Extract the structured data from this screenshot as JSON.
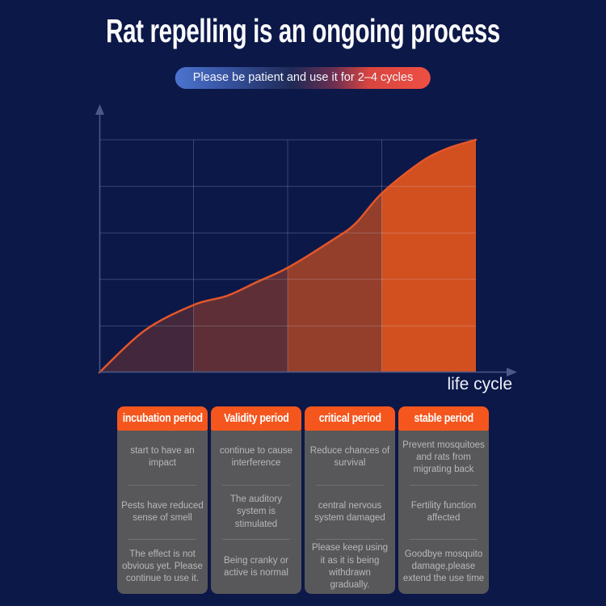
{
  "page": {
    "title": "Rat repelling is an ongoing process",
    "banner": "Please be patient and use it for 2–4 cycles"
  },
  "colors": {
    "background": "#0c1848",
    "header_orange": "#f4561d",
    "curve_orange": "#e4562a",
    "area_orange": "#d9531f",
    "banner_blue": "#4b74cf",
    "banner_red": "#ee4f43",
    "card_gray": "#58585a",
    "grid_line": "rgba(225,232,250,0.22)",
    "axis_line": "#4c5a87",
    "text_light": "#b7b8ba"
  },
  "chart_data": {
    "type": "area",
    "title": "",
    "xlabel": "life cycle",
    "ylabel": "",
    "legend": "none",
    "grid": {
      "rows": 5,
      "cols": 4,
      "visible": true
    },
    "axes": "unlabeled decorative axes with arrowheads; no tick values shown",
    "categories": [
      "incubation period",
      "Validity period",
      "critical period",
      "stable period"
    ],
    "column_fill_opacity": [
      0.27,
      0.4,
      0.66,
      0.97
    ],
    "curve_points_pct": [
      [
        0,
        0
      ],
      [
        12,
        18
      ],
      [
        25,
        29
      ],
      [
        34,
        33
      ],
      [
        42,
        39
      ],
      [
        50,
        45
      ],
      [
        62,
        57
      ],
      [
        68,
        64
      ],
      [
        75,
        77
      ],
      [
        85,
        90
      ],
      [
        92,
        96
      ],
      [
        100,
        100
      ]
    ]
  },
  "table": {
    "columns": [
      {
        "header": "incubation period",
        "cells": [
          "start to have an impact",
          "Pests have reduced sense of smell",
          "The effect is not obvious yet. Please continue to use it."
        ]
      },
      {
        "header": "Validity period",
        "cells": [
          "continue to cause interference",
          "The auditory system is stimulated",
          "Being cranky or active is normal"
        ]
      },
      {
        "header": "critical period",
        "cells": [
          "Reduce chances of survival",
          "central nervous system damaged",
          "Please keep using it as it is being withdrawn gradually."
        ]
      },
      {
        "header": "stable period",
        "cells": [
          "Prevent mosquitoes and rats from migrating back",
          "Fertility function affected",
          "Goodbye mosquito damage,please extend the use time"
        ]
      }
    ]
  }
}
